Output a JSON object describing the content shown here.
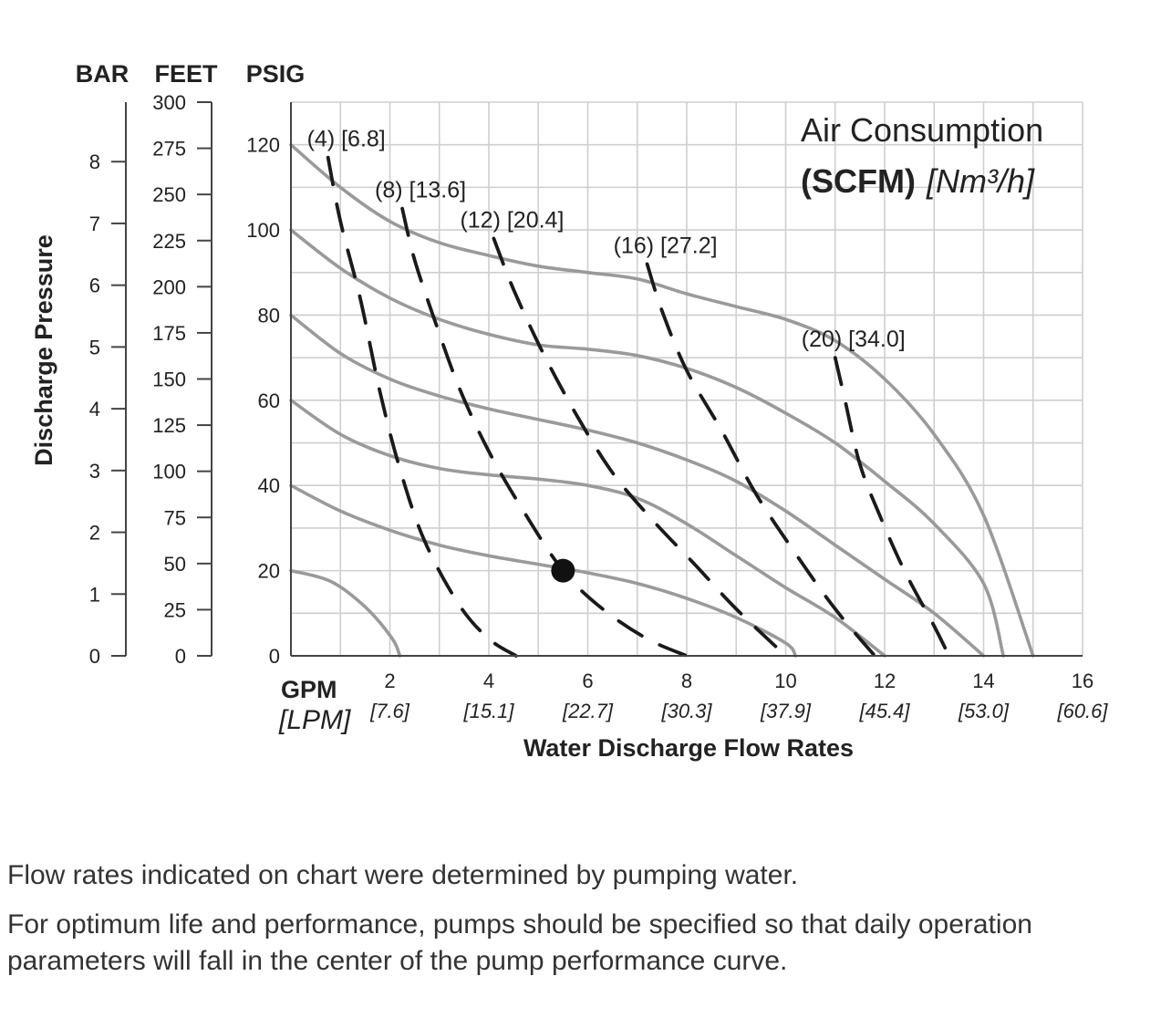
{
  "chart_data": {
    "type": "line",
    "legend_title": "Air Consumption",
    "legend_subtitle_bold": "(SCFM)",
    "legend_subtitle_italic": "[Nm³/h]",
    "xlabel": "Water Discharge Flow Rates",
    "x_unit_primary": "GPM",
    "x_unit_secondary": "[LPM]",
    "xlim": [
      0,
      16
    ],
    "x_ticks": [
      {
        "value": 2,
        "label": "2",
        "sublabel": "[7.6]"
      },
      {
        "value": 4,
        "label": "4",
        "sublabel": "[15.1]"
      },
      {
        "value": 6,
        "label": "6",
        "sublabel": "[22.7]"
      },
      {
        "value": 8,
        "label": "8",
        "sublabel": "[30.3]"
      },
      {
        "value": 10,
        "label": "10",
        "sublabel": "[37.9]"
      },
      {
        "value": 12,
        "label": "12",
        "sublabel": "[45.4]"
      },
      {
        "value": 14,
        "label": "14",
        "sublabel": "[53.0]"
      },
      {
        "value": 16,
        "label": "16",
        "sublabel": "[60.6]"
      }
    ],
    "ylabel": "Discharge Pressure",
    "ylim": [
      0,
      130
    ],
    "y_axes": [
      {
        "unit": "BAR",
        "ticks": [
          {
            "value": 0,
            "label": "0"
          },
          {
            "value": 1,
            "label": "1"
          },
          {
            "value": 2,
            "label": "2"
          },
          {
            "value": 3,
            "label": "3"
          },
          {
            "value": 4,
            "label": "4"
          },
          {
            "value": 5,
            "label": "5"
          },
          {
            "value": 6,
            "label": "6"
          },
          {
            "value": 7,
            "label": "7"
          },
          {
            "value": 8,
            "label": "8"
          }
        ]
      },
      {
        "unit": "FEET",
        "ticks": [
          {
            "value": 0,
            "label": "0"
          },
          {
            "value": 25,
            "label": "25"
          },
          {
            "value": 50,
            "label": "50"
          },
          {
            "value": 75,
            "label": "75"
          },
          {
            "value": 100,
            "label": "100"
          },
          {
            "value": 125,
            "label": "125"
          },
          {
            "value": 150,
            "label": "150"
          },
          {
            "value": 175,
            "label": "175"
          },
          {
            "value": 200,
            "label": "200"
          },
          {
            "value": 225,
            "label": "225"
          },
          {
            "value": 250,
            "label": "250"
          },
          {
            "value": 275,
            "label": "275"
          },
          {
            "value": 300,
            "label": "300"
          }
        ]
      },
      {
        "unit": "PSIG",
        "ticks": [
          {
            "value": 0,
            "label": "0"
          },
          {
            "value": 20,
            "label": "20"
          },
          {
            "value": 40,
            "label": "40"
          },
          {
            "value": 60,
            "label": "60"
          },
          {
            "value": 80,
            "label": "80"
          },
          {
            "value": 100,
            "label": "100"
          },
          {
            "value": 120,
            "label": "120"
          }
        ]
      }
    ],
    "grid": true,
    "x_minor_step": 1,
    "y_minor_step": 10,
    "pressure_curves": [
      {
        "inlet_psig": 20,
        "points": [
          [
            0,
            20
          ],
          [
            0.8,
            17.5
          ],
          [
            1.5,
            11.5
          ],
          [
            2.05,
            4
          ],
          [
            2.2,
            0
          ]
        ]
      },
      {
        "inlet_psig": 40,
        "points": [
          [
            0,
            40
          ],
          [
            1,
            34
          ],
          [
            2,
            29.5
          ],
          [
            3,
            26
          ],
          [
            4,
            23.5
          ],
          [
            5,
            21.5
          ],
          [
            6,
            19.5
          ],
          [
            7,
            17
          ],
          [
            8,
            13.5
          ],
          [
            9,
            9
          ],
          [
            10,
            3
          ],
          [
            10.2,
            0
          ]
        ]
      },
      {
        "inlet_psig": 60,
        "points": [
          [
            0,
            60
          ],
          [
            1,
            52
          ],
          [
            2,
            47
          ],
          [
            3,
            44
          ],
          [
            4,
            42.5
          ],
          [
            5,
            41.5
          ],
          [
            6,
            40
          ],
          [
            7,
            37
          ],
          [
            8,
            31
          ],
          [
            9,
            23.5
          ],
          [
            10,
            16
          ],
          [
            11,
            9
          ],
          [
            12,
            0
          ]
        ]
      },
      {
        "inlet_psig": 80,
        "points": [
          [
            0,
            80
          ],
          [
            1,
            71
          ],
          [
            2,
            65
          ],
          [
            3,
            61
          ],
          [
            4,
            58
          ],
          [
            5,
            55.5
          ],
          [
            6,
            53
          ],
          [
            7,
            50
          ],
          [
            8,
            46
          ],
          [
            9,
            41
          ],
          [
            10,
            34
          ],
          [
            11,
            26
          ],
          [
            12,
            18
          ],
          [
            13,
            10
          ],
          [
            14,
            0
          ]
        ]
      },
      {
        "inlet_psig": 100,
        "points": [
          [
            0,
            100
          ],
          [
            1,
            91
          ],
          [
            2,
            84
          ],
          [
            3,
            79
          ],
          [
            4,
            75.5
          ],
          [
            5,
            73
          ],
          [
            6,
            72
          ],
          [
            7,
            70.5
          ],
          [
            8,
            67.5
          ],
          [
            9,
            63
          ],
          [
            10,
            57
          ],
          [
            11,
            50
          ],
          [
            12,
            41
          ],
          [
            13,
            31
          ],
          [
            14,
            17
          ],
          [
            14.4,
            0
          ]
        ]
      },
      {
        "inlet_psig": 120,
        "points": [
          [
            0,
            120
          ],
          [
            1,
            110
          ],
          [
            2,
            102
          ],
          [
            3,
            97
          ],
          [
            4,
            94
          ],
          [
            5,
            91.5
          ],
          [
            6,
            90
          ],
          [
            7,
            88.5
          ],
          [
            8,
            85
          ],
          [
            9,
            82
          ],
          [
            10,
            79
          ],
          [
            11,
            74
          ],
          [
            12,
            65
          ],
          [
            13,
            52
          ],
          [
            14,
            33
          ],
          [
            15,
            0
          ]
        ]
      }
    ],
    "air_consumption_curves": [
      {
        "label": "(4) [6.8]",
        "points": [
          [
            0.75,
            117
          ],
          [
            1.0,
            102
          ],
          [
            1.4,
            84
          ],
          [
            1.8,
            62
          ],
          [
            2.2,
            44
          ],
          [
            2.7,
            27
          ],
          [
            3.4,
            12
          ],
          [
            4.0,
            4
          ],
          [
            4.55,
            0
          ]
        ]
      },
      {
        "label": "(8) [13.6]",
        "points": [
          [
            2.25,
            105
          ],
          [
            2.5,
            93
          ],
          [
            2.9,
            79
          ],
          [
            3.4,
            63
          ],
          [
            4.0,
            48
          ],
          [
            4.7,
            34
          ],
          [
            5.5,
            20
          ],
          [
            6.3,
            11
          ],
          [
            7.2,
            4
          ],
          [
            8.0,
            0
          ]
        ]
      },
      {
        "label": "(12) [20.4]",
        "points": [
          [
            4.1,
            98
          ],
          [
            4.5,
            86
          ],
          [
            5.1,
            71
          ],
          [
            5.8,
            56
          ],
          [
            6.5,
            43
          ],
          [
            7.3,
            32
          ],
          [
            8.2,
            21
          ],
          [
            9.0,
            11
          ],
          [
            10.0,
            0
          ]
        ]
      },
      {
        "label": "(16) [27.2]",
        "points": [
          [
            7.2,
            92
          ],
          [
            7.5,
            81
          ],
          [
            8.0,
            67
          ],
          [
            8.7,
            53
          ],
          [
            9.4,
            38
          ],
          [
            10.2,
            24
          ],
          [
            11.0,
            11
          ],
          [
            11.8,
            0
          ]
        ]
      },
      {
        "label": "(20) [34.0]",
        "points": [
          [
            11.0,
            70
          ],
          [
            11.2,
            60
          ],
          [
            11.5,
            45
          ],
          [
            11.9,
            33
          ],
          [
            12.4,
            20
          ],
          [
            13.0,
            7
          ],
          [
            13.3,
            0
          ]
        ]
      }
    ],
    "highlight_point": {
      "x": 5.5,
      "y": 20
    }
  },
  "notes": [
    "Flow rates indicated on chart were determined by pumping water.",
    "For optimum life and performance, pumps should be specified so that daily operation parameters will fall in the center of the pump performance curve."
  ]
}
